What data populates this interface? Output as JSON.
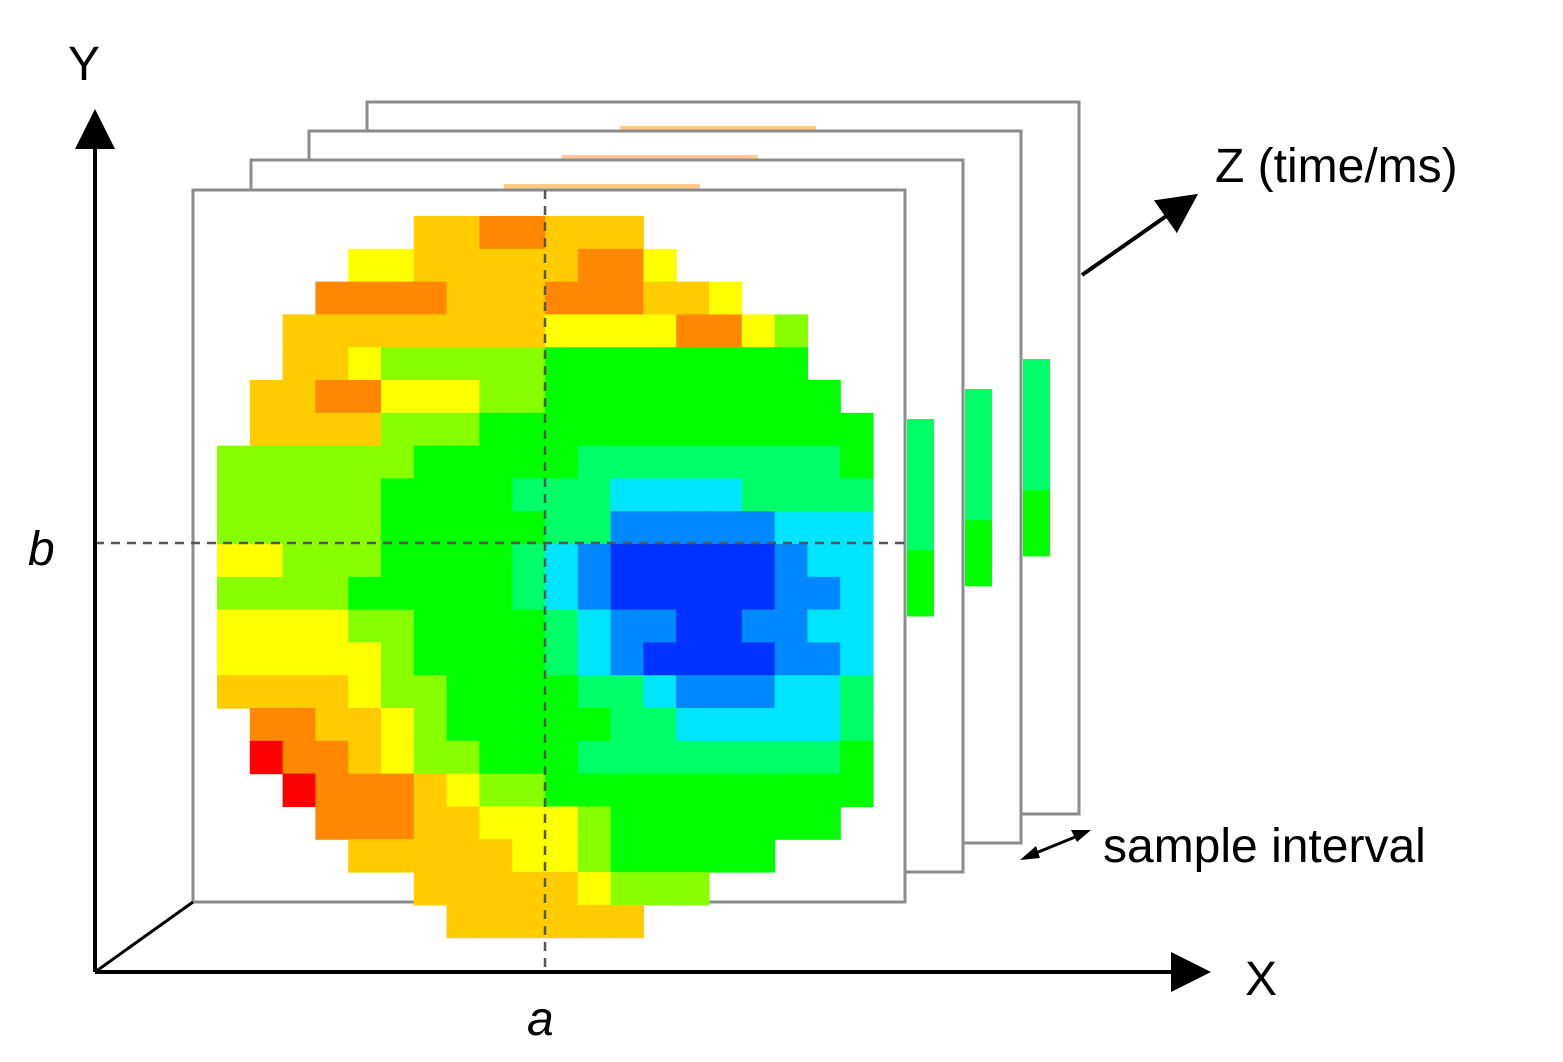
{
  "labels": {
    "y_axis": "Y",
    "x_axis": "X",
    "z_axis": "Z (time/ms)",
    "a": "a",
    "b": "b",
    "sample_interval": "sample interval"
  },
  "colors": {
    "frame_border": "#8c8c8c",
    "axis": "#000000",
    "crosshair": "#555555",
    "colormap": [
      "#0033ff",
      "#0088ff",
      "#00e5ff",
      "#00ff66",
      "#00ff00",
      "#88ff00",
      "#ffff00",
      "#ffcc00",
      "#ff8800",
      "#ff0000"
    ]
  },
  "heatmap": {
    "rows": [
      "......7788777.......",
      "....6677777886......",
      "...8888777888776....",
      "..7777777766668865..",
      "..7765555544444444..",
      ".778866655444444444.",
      ".77775554444444444444",
      "5555554444433333333444",
      "5555544443332222333334",
      "5555544444331111122244",
      "6655544443210000012244",
      "5555444443210000011244",
      "6666554444321100112234",
      "66666544443210000112234",
      "7777655444433211122333",
      ".8877654444433222223333",
      ".98876554443333333344",
      "..9888765544444444444",
      "...8887766654444444",
      "....7777766544444",
      "......777776555",
      ".......777777"
    ],
    "back_strips": [
      [
        "3",
        "3",
        "3",
        "3",
        "4",
        "4"
      ],
      [
        "3",
        "3",
        "3",
        "3",
        "4",
        "4"
      ],
      [
        "3",
        "3",
        "3",
        "3",
        "4",
        "4"
      ]
    ]
  }
}
